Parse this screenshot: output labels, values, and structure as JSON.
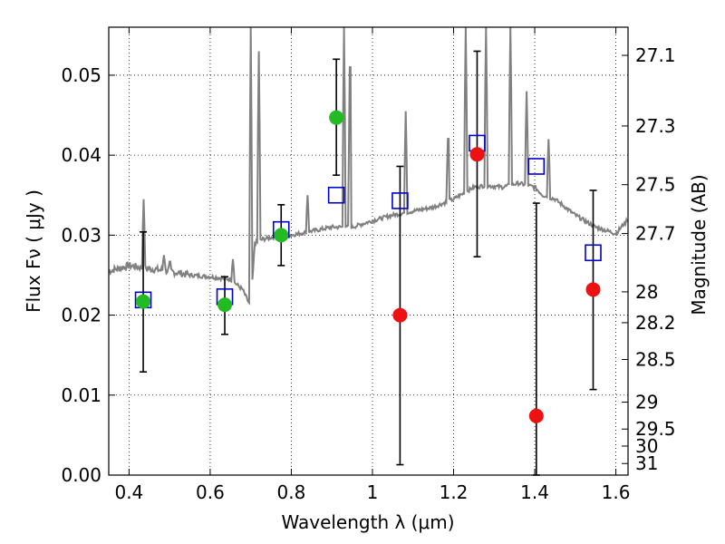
{
  "chart_data": {
    "type": "scatter",
    "xlabel": "Wavelength  λ (μm)",
    "ylabel": "Flux  Fν  ( μJy )",
    "y2label": "Magnitude (AB)",
    "xlim": [
      0.35,
      1.63
    ],
    "ylim": [
      0.0,
      0.056
    ],
    "grid": true,
    "x_ticks": [
      "0.4",
      "0.6",
      "0.8",
      "1",
      "1.2",
      "1.4",
      "1.6"
    ],
    "x_tick_values": [
      0.4,
      0.6,
      0.8,
      1.0,
      1.2,
      1.4,
      1.6
    ],
    "y_ticks": [
      "0.00",
      "0.01",
      "0.02",
      "0.03",
      "0.04",
      "0.05"
    ],
    "y_tick_values": [
      0.0,
      0.01,
      0.02,
      0.03,
      0.04,
      0.05
    ],
    "mag_ticks": [
      {
        "label": "27.1",
        "mag": 27.1
      },
      {
        "label": "27.3",
        "mag": 27.3
      },
      {
        "label": "27.5",
        "mag": 27.5
      },
      {
        "label": "27.7",
        "mag": 27.7
      },
      {
        "label": "28",
        "mag": 28.0
      },
      {
        "label": "28.2",
        "mag": 28.2
      },
      {
        "label": "28.5",
        "mag": 28.5
      },
      {
        "label": "29",
        "mag": 29.0
      },
      {
        "label": "29.5",
        "mag": 29.5
      },
      {
        "label": "30",
        "mag": 30.0
      },
      {
        "label": "31",
        "mag": 31.0
      }
    ],
    "series": [
      {
        "marker": "circle",
        "color": "#22bb22",
        "points": [
          {
            "x": 0.435,
            "y": 0.0217,
            "err_low": 0.0129,
            "err_high": 0.0304
          },
          {
            "x": 0.636,
            "y": 0.0213,
            "err_low": 0.0176,
            "err_high": 0.0248
          },
          {
            "x": 0.775,
            "y": 0.03,
            "err_low": 0.0262,
            "err_high": 0.0338
          },
          {
            "x": 0.911,
            "y": 0.0447,
            "err_low": 0.0375,
            "err_high": 0.052
          }
        ]
      },
      {
        "marker": "circle",
        "color": "#ee1111",
        "points": [
          {
            "x": 1.068,
            "y": 0.02,
            "err_low": 0.0013,
            "err_high": 0.0386
          },
          {
            "x": 1.258,
            "y": 0.0401,
            "err_low": 0.0273,
            "err_high": 0.053
          },
          {
            "x": 1.404,
            "y": 0.0074,
            "err_low": 0.0,
            "err_high": 0.034
          },
          {
            "x": 1.544,
            "y": 0.0232,
            "err_low": 0.0107,
            "err_high": 0.0356
          }
        ]
      },
      {
        "marker": "open-square",
        "color": "#0000cc",
        "points": [
          {
            "x": 0.435,
            "y": 0.0219
          },
          {
            "x": 0.636,
            "y": 0.0223
          },
          {
            "x": 0.775,
            "y": 0.0307
          },
          {
            "x": 0.911,
            "y": 0.035
          },
          {
            "x": 1.068,
            "y": 0.0343
          },
          {
            "x": 1.258,
            "y": 0.0415
          },
          {
            "x": 1.404,
            "y": 0.0386
          },
          {
            "x": 1.544,
            "y": 0.0278
          }
        ]
      }
    ],
    "model_spectrum": {
      "color": "#808080",
      "continuum": [
        [
          0.35,
          0.0255
        ],
        [
          0.4,
          0.0262
        ],
        [
          0.45,
          0.0258
        ],
        [
          0.5,
          0.0255
        ],
        [
          0.55,
          0.025
        ],
        [
          0.6,
          0.0248
        ],
        [
          0.65,
          0.0245
        ],
        [
          0.68,
          0.0232
        ],
        [
          0.7,
          0.021
        ],
        [
          0.71,
          0.029
        ],
        [
          0.73,
          0.0295
        ],
        [
          0.76,
          0.0298
        ],
        [
          0.8,
          0.03
        ],
        [
          0.85,
          0.0305
        ],
        [
          0.9,
          0.031
        ],
        [
          0.95,
          0.031
        ],
        [
          1.0,
          0.0318
        ],
        [
          1.05,
          0.0325
        ],
        [
          1.1,
          0.033
        ],
        [
          1.15,
          0.0335
        ],
        [
          1.2,
          0.0345
        ],
        [
          1.25,
          0.036
        ],
        [
          1.28,
          0.0362
        ],
        [
          1.32,
          0.036
        ],
        [
          1.36,
          0.0365
        ],
        [
          1.4,
          0.036
        ],
        [
          1.42,
          0.035
        ],
        [
          1.45,
          0.0345
        ],
        [
          1.5,
          0.0325
        ],
        [
          1.55,
          0.031
        ],
        [
          1.6,
          0.0302
        ],
        [
          1.63,
          0.032
        ]
      ],
      "lines": [
        [
          0.436,
          0.0345
        ],
        [
          0.486,
          0.0275
        ],
        [
          0.501,
          0.027
        ],
        [
          0.656,
          0.027
        ],
        [
          0.7,
          0.056
        ],
        [
          0.72,
          0.053
        ],
        [
          0.84,
          0.035
        ],
        [
          0.93,
          0.056
        ],
        [
          0.945,
          0.056
        ],
        [
          1.082,
          0.0455
        ],
        [
          1.187,
          0.044
        ],
        [
          1.23,
          0.056
        ],
        [
          1.28,
          0.056
        ],
        [
          1.34,
          0.056
        ],
        [
          1.38,
          0.048
        ],
        [
          1.434,
          0.042
        ]
      ]
    }
  }
}
